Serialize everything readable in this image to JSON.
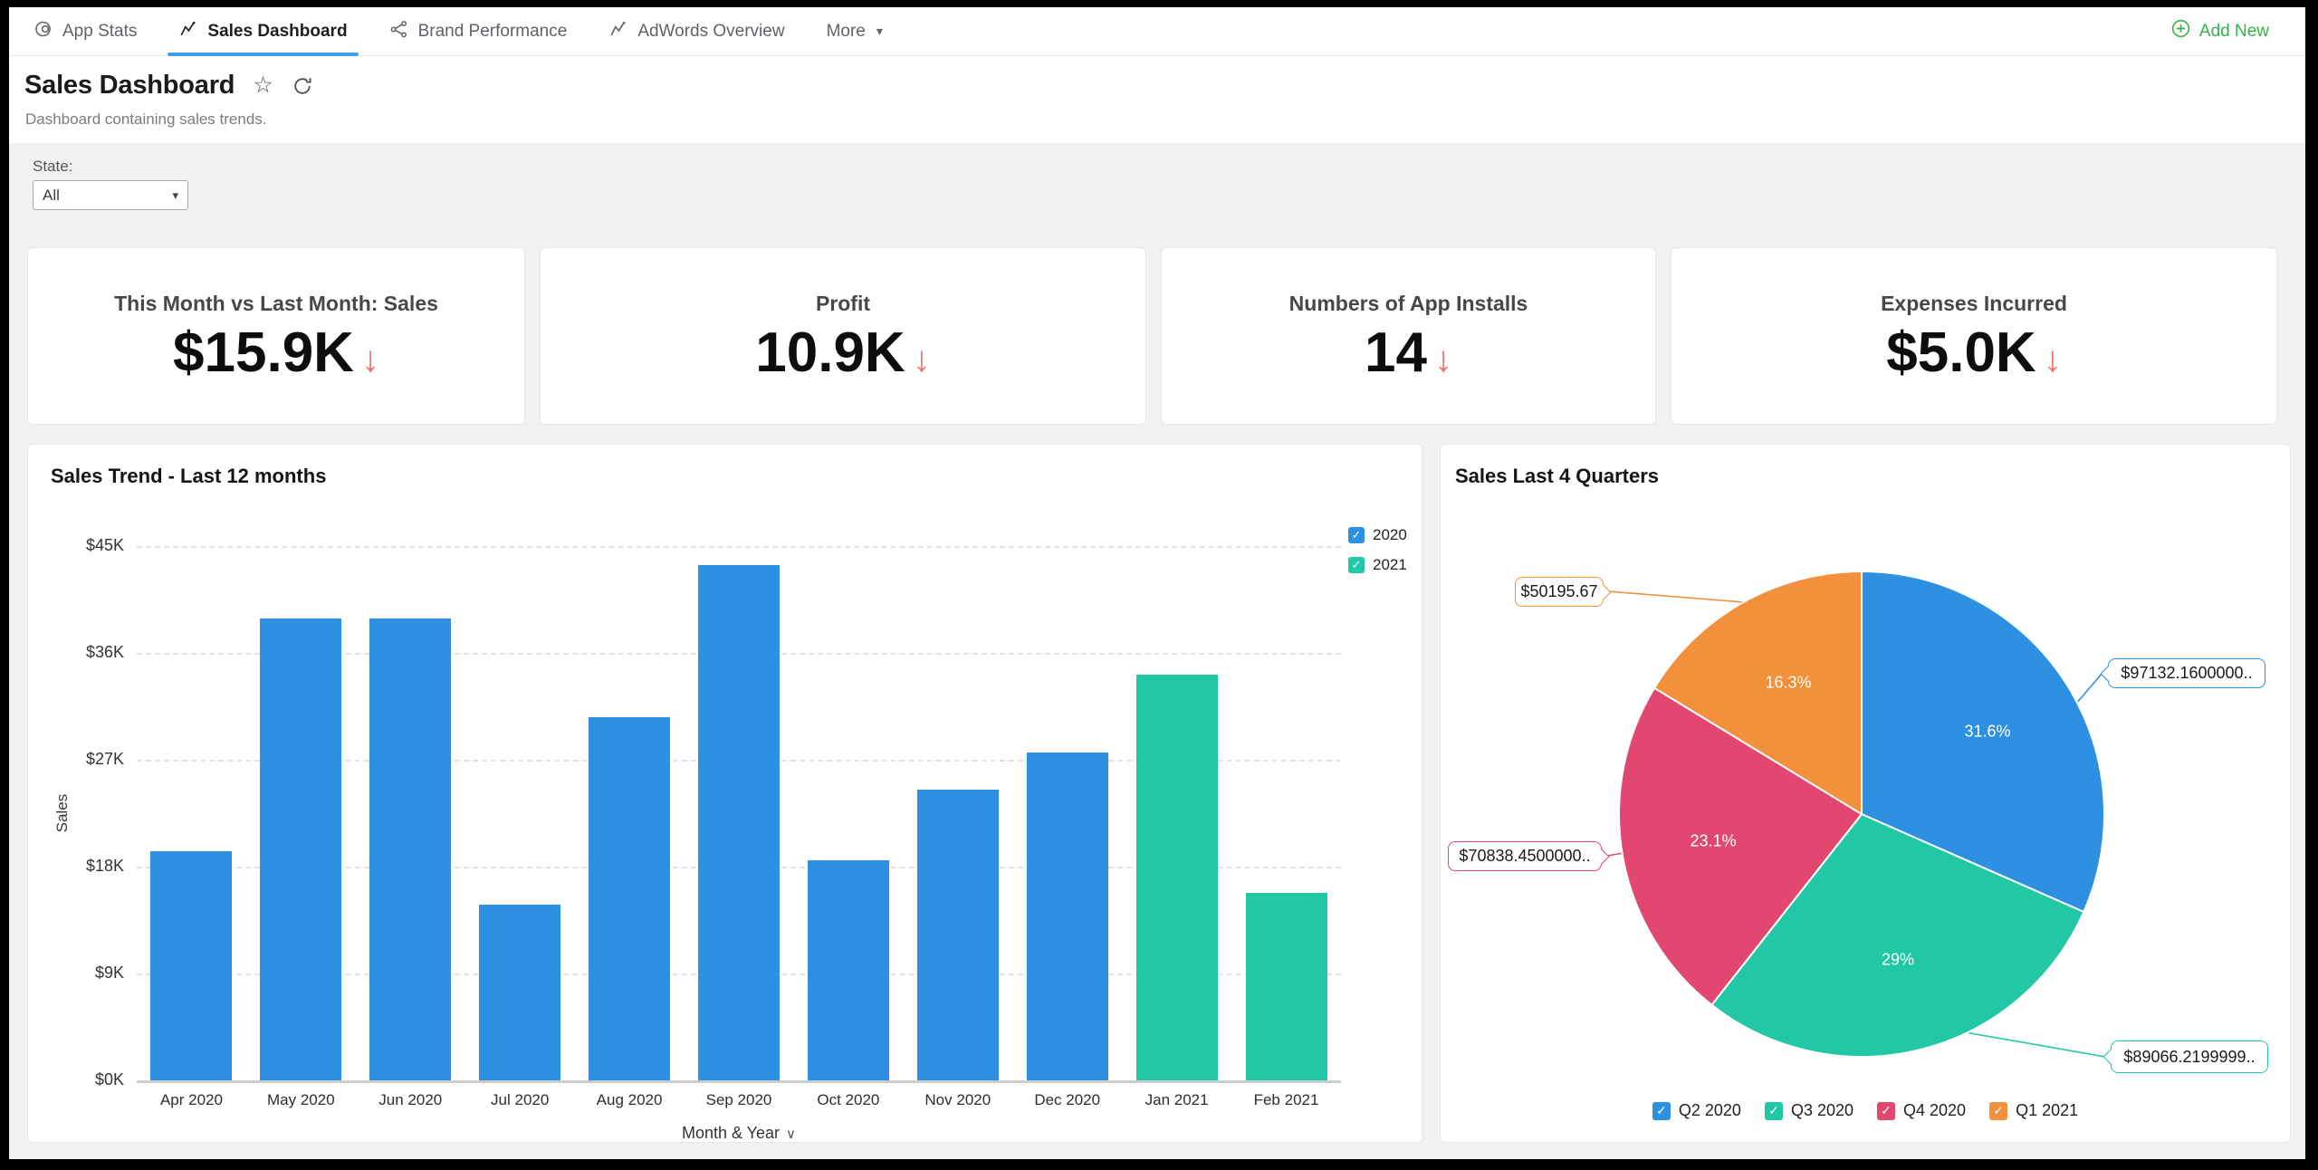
{
  "nav": {
    "tabs": [
      {
        "label": "App Stats",
        "icon": "app-stats-icon",
        "active": false
      },
      {
        "label": "Sales Dashboard",
        "icon": "line-chart-icon",
        "active": true
      },
      {
        "label": "Brand Performance",
        "icon": "share-icon",
        "active": false
      },
      {
        "label": "AdWords Overview",
        "icon": "line-chart-icon",
        "active": false
      },
      {
        "label": "More",
        "icon": "caret-down-icon",
        "active": false
      }
    ],
    "add_new": {
      "label": "Add New",
      "icon": "plus-circle-icon"
    }
  },
  "header": {
    "title": "Sales Dashboard",
    "subtitle": "Dashboard containing sales trends.",
    "icons": [
      "star-icon",
      "refresh-icon"
    ]
  },
  "filter": {
    "label": "State:",
    "value": "All"
  },
  "kpis": [
    {
      "title": "This Month vs Last Month: Sales",
      "value": "$15.9K",
      "trend": "down"
    },
    {
      "title": "Profit",
      "value": "10.9K",
      "trend": "down"
    },
    {
      "title": "Numbers of App Installs",
      "value": "14",
      "trend": "down"
    },
    {
      "title": "Expenses Incurred",
      "value": "$5.0K",
      "trend": "down"
    }
  ],
  "glyphs": {
    "down_arrow": "↓",
    "caret_down": "▾",
    "checkmark": "✓",
    "chevron_down": "∨",
    "star": "☆"
  },
  "colors": {
    "blue": "#2e90e0",
    "teal": "#22c8a5",
    "pink": "#e2486f",
    "orange": "#f2903c",
    "green": "#35b24a",
    "red_arrow": "#f47170",
    "tab_underline": "#42a0e8"
  },
  "chart_data": [
    {
      "type": "bar",
      "title": "Sales Trend - Last 12 months",
      "xlabel": "Month & Year",
      "ylabel": "Sales",
      "unit": "$K",
      "ylim": [
        0,
        45
      ],
      "yticks": [
        "$45K",
        "$36K",
        "$27K",
        "$18K",
        "$9K",
        "$0K"
      ],
      "grid": "dashed-horizontal",
      "legend_position": "top-right",
      "categories": [
        "Apr 2020",
        "May 2020",
        "Jun 2020",
        "Jul 2020",
        "Aug 2020",
        "Sep 2020",
        "Oct 2020",
        "Nov 2020",
        "Dec 2020",
        "Jan 2021",
        "Feb 2021"
      ],
      "series": [
        {
          "name": "2020",
          "color": "#2e90e0",
          "values": [
            19.3,
            38.9,
            38.9,
            14.8,
            30.6,
            43.4,
            18.5,
            24.5,
            27.6,
            null,
            null
          ]
        },
        {
          "name": "2021",
          "color": "#22c8a5",
          "values": [
            null,
            null,
            null,
            null,
            null,
            null,
            null,
            null,
            null,
            34.2,
            15.8
          ]
        }
      ]
    },
    {
      "type": "pie",
      "title": "Sales Last 4 Quarters",
      "direction": "clockwise",
      "start_angle_deg": 0,
      "legend_position": "bottom-center",
      "slices": [
        {
          "label": "Q2 2020",
          "value_label": "$97132.1600000..",
          "percent": 31.6,
          "percent_label": "31.6%",
          "color": "#2e90e0"
        },
        {
          "label": "Q3 2020",
          "value_label": "$89066.2199999..",
          "percent": 29.0,
          "percent_label": "29%",
          "color": "#22c8a5"
        },
        {
          "label": "Q4 2020",
          "value_label": "$70838.4500000..",
          "percent": 23.1,
          "percent_label": "23.1%",
          "color": "#e2486f"
        },
        {
          "label": "Q1 2021",
          "value_label": "$50195.67",
          "percent": 16.3,
          "percent_label": "16.3%",
          "color": "#f2903c"
        }
      ],
      "legend": [
        "Q2 2020",
        "Q3 2020",
        "Q4 2020",
        "Q1 2021"
      ]
    }
  ]
}
